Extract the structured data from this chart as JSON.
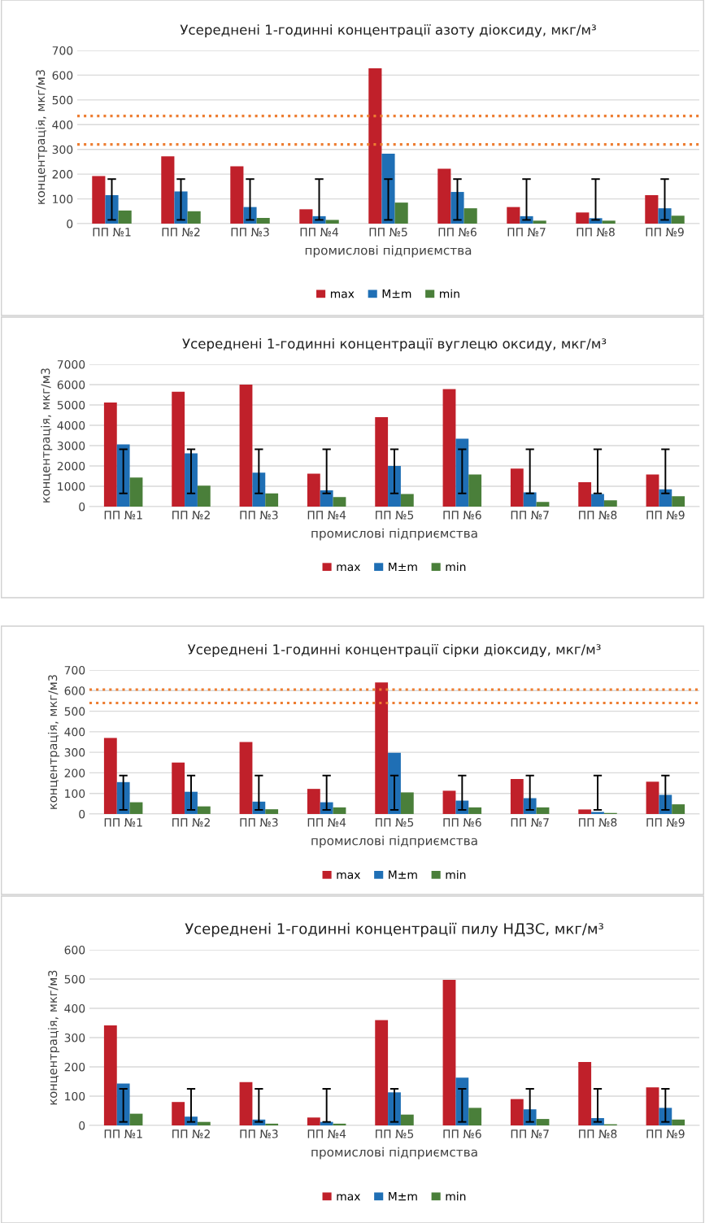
{
  "chart_data": [
    {
      "type": "bar",
      "title": "Усереднені 1-годинні концентрації азоту діоксиду, мкг/м³",
      "xlabel": "промислові підприємства",
      "ylabel": "концентрація, мкг/м3",
      "categories": [
        "ПП №1",
        "ПП №2",
        "ПП №3",
        "ПП №4",
        "ПП №5",
        "ПП №6",
        "ПП №7",
        "ПП №8",
        "ПП №9"
      ],
      "ylim": [
        0,
        700
      ],
      "yticks": [
        0,
        100,
        200,
        300,
        400,
        500,
        600,
        700
      ],
      "grid": "y",
      "legend": "bottom",
      "series": [
        {
          "name": "max",
          "color": "#c0202a",
          "values": [
            192,
            272,
            232,
            58,
            628,
            222,
            67,
            45,
            115
          ]
        },
        {
          "name": "M±m",
          "color": "#1f6fb5",
          "values": [
            115,
            130,
            67,
            30,
            283,
            128,
            30,
            22,
            62
          ],
          "errors": [
            [
              15,
              180
            ],
            [
              15,
              180
            ],
            [
              15,
              180
            ],
            [
              15,
              180
            ],
            [
              15,
              180
            ],
            [
              15,
              180
            ],
            [
              15,
              180
            ],
            [
              15,
              180
            ],
            [
              15,
              180
            ]
          ]
        },
        {
          "name": "min",
          "color": "#4a7f3a",
          "values": [
            53,
            50,
            23,
            15,
            85,
            62,
            12,
            12,
            32
          ]
        }
      ],
      "ref_lines": [
        {
          "axis": "y",
          "value": 320,
          "color": "#ed7d31",
          "line_style": "dotted"
        },
        {
          "axis": "y",
          "value": 435,
          "color": "#ed7d31",
          "line_style": "dotted"
        }
      ]
    },
    {
      "type": "bar",
      "title": "Усереднені 1-годинні концентрації вуглецю оксиду, мкг/м³",
      "xlabel": "промислові підприємства",
      "ylabel": "концентрація, мкг/м3",
      "categories": [
        "ПП №1",
        "ПП №2",
        "ПП №3",
        "ПП №4",
        "ПП №5",
        "ПП №6",
        "ПП №7",
        "ПП №8",
        "ПП №9"
      ],
      "ylim": [
        0,
        7000
      ],
      "yticks": [
        0,
        1000,
        2000,
        3000,
        4000,
        5000,
        6000,
        7000
      ],
      "grid": "y",
      "legend": "bottom",
      "series": [
        {
          "name": "max",
          "color": "#c0202a",
          "values": [
            5120,
            5650,
            6000,
            1620,
            4400,
            5780,
            1870,
            1200,
            1580
          ]
        },
        {
          "name": "M±m",
          "color": "#1f6fb5",
          "values": [
            3060,
            2620,
            1670,
            800,
            2000,
            3340,
            700,
            620,
            850
          ],
          "errors": [
            [
              650,
              2820
            ],
            [
              650,
              2820
            ],
            [
              650,
              2820
            ],
            [
              650,
              2820
            ],
            [
              650,
              2820
            ],
            [
              650,
              2820
            ],
            [
              650,
              2820
            ],
            [
              650,
              2820
            ],
            [
              650,
              2820
            ]
          ]
        },
        {
          "name": "min",
          "color": "#4a7f3a",
          "values": [
            1430,
            1030,
            650,
            470,
            620,
            1580,
            230,
            310,
            510
          ]
        }
      ]
    },
    {
      "type": "bar",
      "title": "Усереднені 1-годинні концентрації сірки діоксиду, мкг/м³",
      "xlabel": "промислові підприємства",
      "ylabel": "концентрація, мкг/м3",
      "categories": [
        "ПП №1",
        "ПП №2",
        "ПП №3",
        "ПП №4",
        "ПП №5",
        "ПП №6",
        "ПП №7",
        "ПП №8",
        "ПП №9"
      ],
      "ylim": [
        0,
        700
      ],
      "yticks": [
        0,
        100,
        200,
        300,
        400,
        500,
        600,
        700
      ],
      "grid": "y",
      "legend": "bottom",
      "series": [
        {
          "name": "max",
          "color": "#c0202a",
          "values": [
            370,
            250,
            350,
            122,
            640,
            113,
            170,
            22,
            157
          ]
        },
        {
          "name": "M±m",
          "color": "#1f6fb5",
          "values": [
            155,
            108,
            60,
            57,
            298,
            65,
            77,
            10,
            93
          ],
          "errors": [
            [
              20,
              187
            ],
            [
              20,
              187
            ],
            [
              20,
              187
            ],
            [
              20,
              187
            ],
            [
              20,
              187
            ],
            [
              20,
              187
            ],
            [
              20,
              187
            ],
            [
              20,
              187
            ],
            [
              20,
              187
            ]
          ]
        },
        {
          "name": "min",
          "color": "#4a7f3a",
          "values": [
            57,
            37,
            23,
            32,
            105,
            32,
            32,
            5,
            47
          ]
        }
      ],
      "ref_lines": [
        {
          "axis": "y",
          "value": 540,
          "color": "#ed7d31",
          "line_style": "dotted"
        },
        {
          "axis": "y",
          "value": 605,
          "color": "#ed7d31",
          "line_style": "dotted"
        }
      ]
    },
    {
      "type": "bar",
      "title": "Усереднені 1-годинні концентрації пилу НДЗС, мкг/м³",
      "xlabel": "промислові підприємства",
      "ylabel": "концентрація, мкг/м3",
      "categories": [
        "ПП №1",
        "ПП №2",
        "ПП №3",
        "ПП №4",
        "ПП №5",
        "ПП №6",
        "ПП №7",
        "ПП №8",
        "ПП №9"
      ],
      "ylim": [
        0,
        600
      ],
      "yticks": [
        0,
        100,
        200,
        300,
        400,
        500,
        600
      ],
      "grid": "y",
      "legend": "bottom",
      "series": [
        {
          "name": "max",
          "color": "#c0202a",
          "values": [
            342,
            80,
            148,
            27,
            360,
            497,
            90,
            217,
            130
          ]
        },
        {
          "name": "M±m",
          "color": "#1f6fb5",
          "values": [
            143,
            30,
            20,
            12,
            113,
            163,
            55,
            25,
            60
          ],
          "errors": [
            [
              12,
              125
            ],
            [
              12,
              125
            ],
            [
              12,
              125
            ],
            [
              12,
              125
            ],
            [
              12,
              125
            ],
            [
              12,
              125
            ],
            [
              12,
              125
            ],
            [
              12,
              125
            ],
            [
              12,
              125
            ]
          ]
        },
        {
          "name": "min",
          "color": "#4a7f3a",
          "values": [
            40,
            12,
            6,
            6,
            37,
            60,
            22,
            4,
            20
          ]
        }
      ]
    }
  ]
}
